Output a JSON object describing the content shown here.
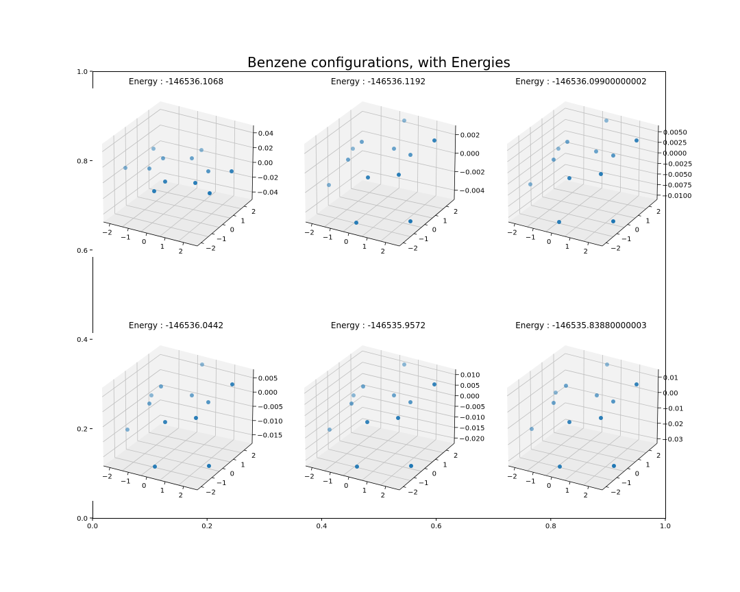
{
  "figure": {
    "title": "Benzene configurations, with Energies",
    "outer_axes": {
      "x_ticks": [
        "0.0",
        "0.2",
        "0.4",
        "0.6",
        "0.8",
        "1.0"
      ],
      "y_ticks": [
        "0.0",
        "0.2",
        "0.4",
        "0.6",
        "0.8",
        "1.0"
      ]
    },
    "colors": {
      "point": "#1f77b4",
      "grid": "#bfbfbf",
      "pane": "#f2f2f2",
      "pane_floor": "#ebebeb"
    }
  },
  "chart_data": [
    {
      "type": "scatter",
      "title": "Energy : -146536.1068",
      "x_ticks": [
        "−2",
        "−1",
        "0",
        "1",
        "2"
      ],
      "y_ticks": [
        "−2",
        "−1",
        "0",
        "1",
        "2"
      ],
      "z_ticks": [
        "0.04",
        "0.02",
        "0.00",
        "−0.02",
        "−0.04"
      ],
      "zlim": [
        -0.05,
        0.05
      ],
      "z_tick_values": [
        0.04,
        0.02,
        0.0,
        -0.02,
        -0.04
      ]
    },
    {
      "type": "scatter",
      "title": "Energy : -146536.1192",
      "x_ticks": [
        "−2",
        "−1",
        "0",
        "1",
        "2"
      ],
      "y_ticks": [
        "−2",
        "−1",
        "0",
        "1",
        "2"
      ],
      "z_ticks": [
        "0.002",
        "0.000",
        "−0.002",
        "−0.004"
      ],
      "zlim": [
        -0.005,
        0.003
      ],
      "z_tick_values": [
        0.002,
        0.0,
        -0.002,
        -0.004
      ]
    },
    {
      "type": "scatter",
      "title": "Energy : -146536.09900000002",
      "x_ticks": [
        "−2",
        "−1",
        "0",
        "1",
        "2"
      ],
      "y_ticks": [
        "−2",
        "−1",
        "0",
        "1",
        "2"
      ],
      "z_ticks": [
        "0.0050",
        "0.0025",
        "0.0000",
        "−0.0025",
        "−0.0050",
        "−0.0075",
        "−0.0100"
      ],
      "zlim": [
        -0.011,
        0.0065
      ],
      "z_tick_values": [
        0.005,
        0.0025,
        0.0,
        -0.0025,
        -0.005,
        -0.0075,
        -0.01
      ]
    },
    {
      "type": "scatter",
      "title": "Energy : -146536.0442",
      "x_ticks": [
        "−2",
        "−1",
        "0",
        "1",
        "2"
      ],
      "y_ticks": [
        "−2",
        "−1",
        "0",
        "1",
        "2"
      ],
      "z_ticks": [
        "0.005",
        "0.000",
        "−0.005",
        "−0.010",
        "−0.015"
      ],
      "zlim": [
        -0.018,
        0.008
      ],
      "z_tick_values": [
        0.005,
        0.0,
        -0.005,
        -0.01,
        -0.015
      ]
    },
    {
      "type": "scatter",
      "title": "Energy : -146535.9572",
      "x_ticks": [
        "−2",
        "−1",
        "0",
        "1",
        "2"
      ],
      "y_ticks": [
        "−2",
        "−1",
        "0",
        "1",
        "2"
      ],
      "z_ticks": [
        "0.010",
        "0.005",
        "0.000",
        "−0.005",
        "−0.010",
        "−0.015",
        "−0.020"
      ],
      "zlim": [
        -0.0225,
        0.0125
      ],
      "z_tick_values": [
        0.01,
        0.005,
        0.0,
        -0.005,
        -0.01,
        -0.015,
        -0.02
      ]
    },
    {
      "type": "scatter",
      "title": "Energy : -146535.83880000003",
      "x_ticks": [
        "−2",
        "−1",
        "0",
        "1",
        "2"
      ],
      "y_ticks": [
        "−2",
        "−1",
        "0",
        "1",
        "2"
      ],
      "z_ticks": [
        "0.01",
        "0.00",
        "−0.01",
        "−0.02",
        "−0.03"
      ],
      "zlim": [
        -0.033,
        0.015
      ],
      "z_tick_values": [
        0.01,
        0.0,
        -0.01,
        -0.02,
        -0.03
      ]
    }
  ]
}
